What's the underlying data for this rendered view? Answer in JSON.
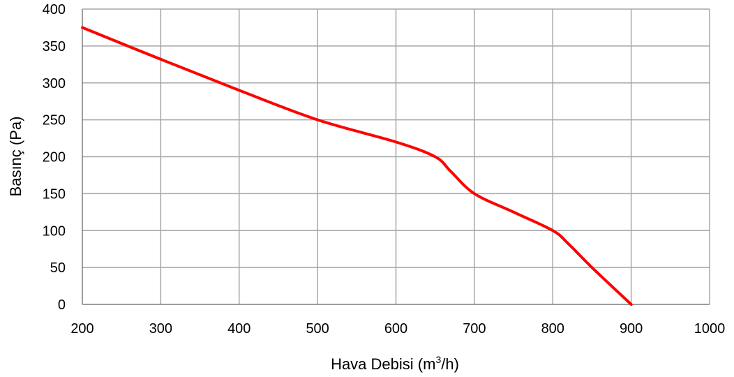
{
  "chart_data": {
    "type": "line",
    "title": "",
    "xlabel": {
      "main": "Hava Debisi (m",
      "sup": "3",
      "tail": "/h)"
    },
    "ylabel": "Basınç (Pa)",
    "xlim": [
      200,
      1000
    ],
    "ylim": [
      0,
      400
    ],
    "xticks": [
      200,
      300,
      400,
      500,
      600,
      700,
      800,
      900,
      1000
    ],
    "yticks": [
      0,
      50,
      100,
      150,
      200,
      250,
      300,
      350,
      400
    ],
    "grid": true,
    "legend": "none",
    "series": [
      {
        "color": "#ff0000",
        "x": [
          200,
          300,
          400,
          500,
          600,
          650,
          670,
          700,
          750,
          800,
          820,
          850,
          900
        ],
        "y": [
          375,
          332,
          290,
          250,
          220,
          200,
          180,
          150,
          125,
          100,
          82,
          50,
          0
        ]
      }
    ]
  }
}
